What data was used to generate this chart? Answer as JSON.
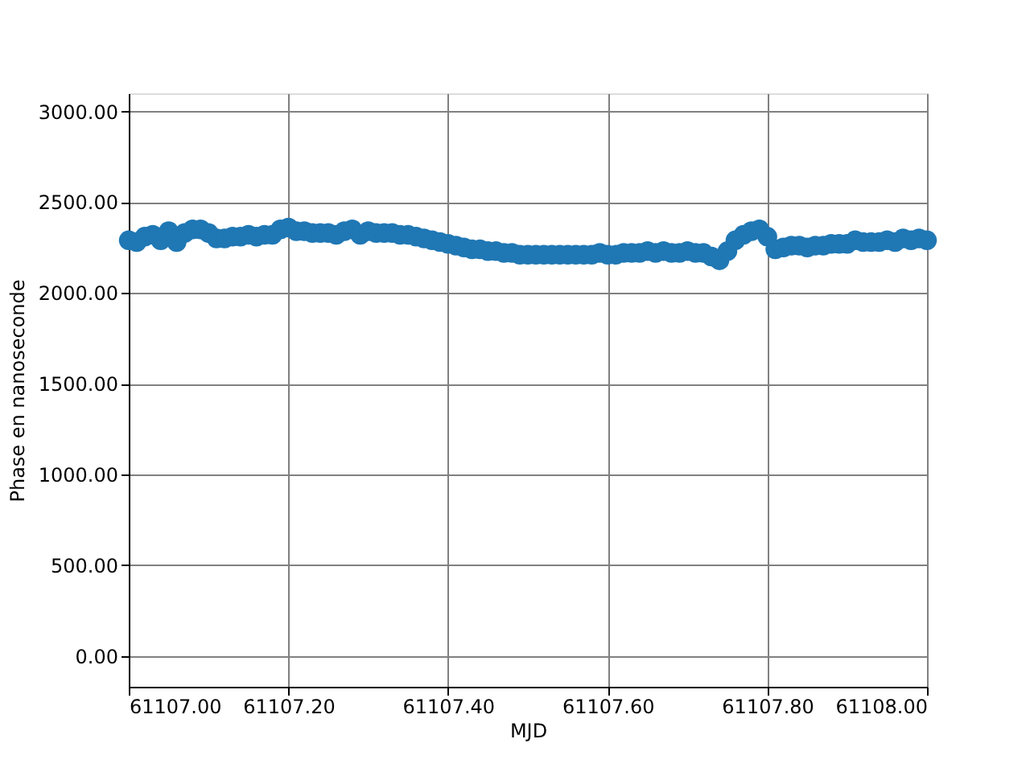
{
  "chart_data": {
    "type": "scatter",
    "xlabel": "MJD",
    "ylabel": "Phase en nanoseconde",
    "x": [
      61107.0,
      61107.01,
      61107.02,
      61107.03,
      61107.04,
      61107.05,
      61107.06,
      61107.07,
      61107.08,
      61107.09,
      61107.1,
      61107.11,
      61107.12,
      61107.13,
      61107.14,
      61107.15,
      61107.16,
      61107.17,
      61107.18,
      61107.19,
      61107.2,
      61107.21,
      61107.22,
      61107.23,
      61107.24,
      61107.25,
      61107.26,
      61107.27,
      61107.28,
      61107.29,
      61107.3,
      61107.31,
      61107.32,
      61107.33,
      61107.34,
      61107.35,
      61107.36,
      61107.37,
      61107.38,
      61107.39,
      61107.4,
      61107.41,
      61107.42,
      61107.43,
      61107.44,
      61107.45,
      61107.46,
      61107.47,
      61107.48,
      61107.49,
      61107.5,
      61107.51,
      61107.52,
      61107.53,
      61107.54,
      61107.55,
      61107.56,
      61107.57,
      61107.58,
      61107.59,
      61107.6,
      61107.61,
      61107.62,
      61107.63,
      61107.64,
      61107.65,
      61107.66,
      61107.67,
      61107.68,
      61107.69,
      61107.7,
      61107.71,
      61107.72,
      61107.73,
      61107.74,
      61107.75,
      61107.76,
      61107.77,
      61107.78,
      61107.79,
      61107.8,
      61107.81,
      61107.82,
      61107.83,
      61107.84,
      61107.85,
      61107.86,
      61107.87,
      61107.88,
      61107.89,
      61107.9,
      61107.91,
      61107.92,
      61107.93,
      61107.94,
      61107.95,
      61107.96,
      61107.97,
      61107.98,
      61107.99,
      61108.0
    ],
    "series": [
      {
        "color": "#1f77b4",
        "values": [
          2290,
          2280,
          2310,
          2320,
          2290,
          2340,
          2280,
          2330,
          2350,
          2350,
          2330,
          2300,
          2300,
          2310,
          2310,
          2320,
          2310,
          2320,
          2320,
          2350,
          2360,
          2340,
          2340,
          2330,
          2330,
          2330,
          2320,
          2340,
          2350,
          2320,
          2340,
          2330,
          2330,
          2330,
          2320,
          2320,
          2310,
          2300,
          2290,
          2280,
          2270,
          2260,
          2250,
          2240,
          2240,
          2230,
          2230,
          2220,
          2220,
          2210,
          2210,
          2210,
          2210,
          2210,
          2210,
          2210,
          2210,
          2210,
          2210,
          2220,
          2210,
          2210,
          2220,
          2220,
          2220,
          2230,
          2220,
          2230,
          2220,
          2220,
          2230,
          2220,
          2220,
          2200,
          2180,
          2230,
          2290,
          2320,
          2340,
          2350,
          2310,
          2240,
          2250,
          2260,
          2260,
          2250,
          2260,
          2260,
          2270,
          2270,
          2270,
          2290,
          2280,
          2280,
          2280,
          2290,
          2280,
          2300,
          2290,
          2300,
          2290
        ]
      }
    ],
    "xlim": [
      61107.0,
      61108.0
    ],
    "xticks": [
      {
        "value": 61107.0,
        "label": "61107.00"
      },
      {
        "value": 61107.2,
        "label": "61107.20"
      },
      {
        "value": 61107.4,
        "label": "61107.40"
      },
      {
        "value": 61107.6,
        "label": "61107.60"
      },
      {
        "value": 61107.8,
        "label": "61107.80"
      },
      {
        "value": 61108.0,
        "label": "61108.00"
      }
    ],
    "ylim": [
      -170,
      3100
    ],
    "yticks": [
      {
        "value": 0,
        "label": "0.00"
      },
      {
        "value": 500,
        "label": "500.00"
      },
      {
        "value": 1000,
        "label": "1000.00"
      },
      {
        "value": 1500,
        "label": "1500.00"
      },
      {
        "value": 2000,
        "label": "2000.00"
      },
      {
        "value": 2500,
        "label": "2500.00"
      },
      {
        "value": 3000,
        "label": "3000.00"
      }
    ],
    "grid": true,
    "marker": "circle",
    "legend": false
  }
}
